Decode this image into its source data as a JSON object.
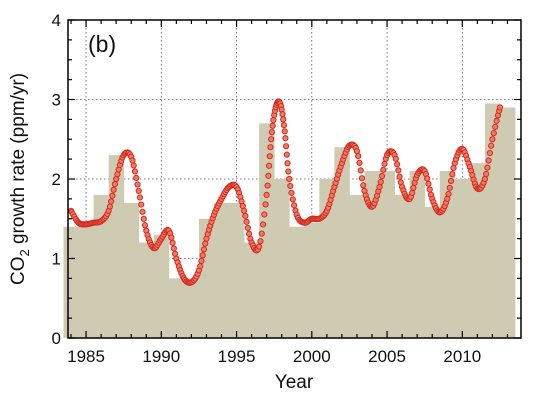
{
  "chart_data": {
    "type": "bar",
    "panel_label": "(b)",
    "xlabel": "Year",
    "ylabel_main": "CO",
    "ylabel_sub": "2",
    "ylabel_rest": " growth rate (ppm/yr)",
    "xlim": [
      1983.8,
      2013.9
    ],
    "ylim": [
      0,
      4
    ],
    "x_ticks": [
      1985,
      1990,
      1995,
      2000,
      2005,
      2010
    ],
    "y_ticks": [
      0,
      1,
      2,
      3,
      4
    ],
    "grid": true,
    "colors": {
      "bars": "#cfcbb3",
      "points_fill": "#f07a64",
      "points_stroke": "#d42a1e"
    },
    "series": [
      {
        "type": "bar",
        "x": [
          1984,
          1985,
          1986,
          1987,
          1988,
          1989,
          1990,
          1991,
          1992,
          1993,
          1994,
          1995,
          1996,
          1997,
          1998,
          1999,
          2000,
          2001,
          2002,
          2003,
          2004,
          2005,
          2006,
          2007,
          2008,
          2009,
          2010,
          2011,
          2012,
          2013
        ],
        "values": [
          1.4,
          1.45,
          1.8,
          2.3,
          1.7,
          1.2,
          1.3,
          0.75,
          0.75,
          1.5,
          1.7,
          1.7,
          1.2,
          2.7,
          2.0,
          1.4,
          1.45,
          2.0,
          2.4,
          1.8,
          2.1,
          2.1,
          1.8,
          2.1,
          1.65,
          2.1,
          2.0,
          2.2,
          2.95,
          2.9
        ]
      },
      {
        "type": "scatter",
        "x": [
          1984.0,
          1984.5,
          1985.0,
          1985.5,
          1986.0,
          1986.5,
          1987.0,
          1987.5,
          1988.0,
          1988.5,
          1989.0,
          1989.5,
          1990.0,
          1990.5,
          1991.0,
          1991.5,
          1992.0,
          1992.5,
          1993.0,
          1993.5,
          1994.0,
          1994.5,
          1995.0,
          1995.5,
          1996.0,
          1996.5,
          1997.0,
          1997.3,
          1997.6,
          1997.9,
          1998.2,
          1998.5,
          1999.0,
          1999.5,
          2000.0,
          2000.5,
          2001.0,
          2001.5,
          2002.0,
          2002.5,
          2003.0,
          2003.5,
          2004.0,
          2004.5,
          2005.0,
          2005.5,
          2006.0,
          2006.5,
          2007.0,
          2007.5,
          2008.0,
          2008.5,
          2009.0,
          2009.5,
          2010.0,
          2010.5,
          2011.0,
          2011.5,
          2012.0,
          2012.5
        ],
        "values": [
          1.6,
          1.45,
          1.43,
          1.45,
          1.47,
          1.6,
          2.0,
          2.3,
          2.28,
          1.85,
          1.35,
          1.13,
          1.25,
          1.35,
          1.0,
          0.75,
          0.7,
          0.85,
          1.25,
          1.55,
          1.75,
          1.9,
          1.9,
          1.6,
          1.2,
          1.15,
          1.8,
          2.5,
          2.9,
          2.95,
          2.6,
          2.0,
          1.55,
          1.45,
          1.5,
          1.5,
          1.6,
          1.9,
          2.2,
          2.42,
          2.35,
          1.85,
          1.65,
          1.9,
          2.3,
          2.3,
          1.9,
          1.75,
          2.05,
          2.1,
          1.75,
          1.58,
          1.75,
          2.2,
          2.38,
          2.15,
          1.88,
          2.0,
          2.5,
          2.9
        ]
      }
    ]
  }
}
